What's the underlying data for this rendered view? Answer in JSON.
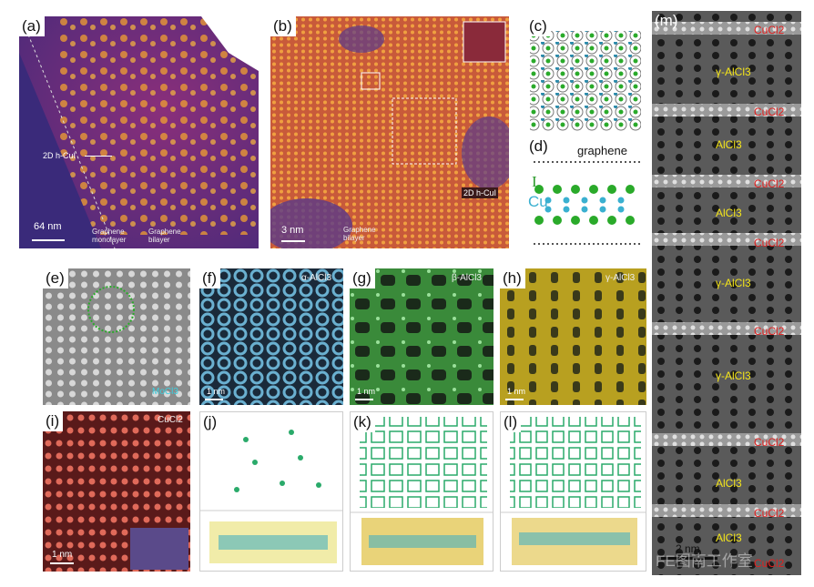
{
  "figure": {
    "panels": [
      {
        "id": "a",
        "label": "(a)",
        "texts": {
          "arrow_label": "2D h-CuI",
          "scale": "64 nm",
          "region1": "Graphene\nmonolayer",
          "region2": "Graphene\nbilayer"
        }
      },
      {
        "id": "b",
        "label": "(b)",
        "texts": {
          "tag": "2D h-CuI",
          "scale": "3 nm",
          "region": "Graphene\nbilayer"
        }
      },
      {
        "id": "c",
        "label": "(c)"
      },
      {
        "id": "d",
        "label": "(d)",
        "texts": {
          "top": "graphene",
          "el1": "I",
          "el2": "Cu"
        }
      },
      {
        "id": "e",
        "label": "(e)",
        "texts": {
          "material": "MoCl3"
        }
      },
      {
        "id": "f",
        "label": "(f)",
        "texts": {
          "material": "α-AlCl3",
          "scale": "1 nm"
        }
      },
      {
        "id": "g",
        "label": "(g)",
        "texts": {
          "material": "β-AlCl3",
          "scale": "1 nm"
        }
      },
      {
        "id": "h",
        "label": "(h)",
        "texts": {
          "material": "γ-AlCl3",
          "scale": "1 nm"
        }
      },
      {
        "id": "i",
        "label": "(i)",
        "texts": {
          "material": "CuCl2",
          "scale": "1 nm"
        }
      },
      {
        "id": "j",
        "label": "(j)"
      },
      {
        "id": "k",
        "label": "(k)"
      },
      {
        "id": "l",
        "label": "(l)"
      },
      {
        "id": "m",
        "label": "(m)",
        "texts": {
          "scale": "2 nm",
          "watermark": "FE图南工作室"
        }
      }
    ],
    "panel_m_layers": [
      {
        "text": "CuCl2",
        "color": "#e0201f"
      },
      {
        "text": "γ-AlCl3",
        "color": "#f5e61a"
      },
      {
        "text": "CuCl2",
        "color": "#e0201f"
      },
      {
        "text": "AlCl3",
        "color": "#f5e61a"
      },
      {
        "text": "CuCl2",
        "color": "#e0201f"
      },
      {
        "text": "AlCl3",
        "color": "#f5e61a"
      },
      {
        "text": "CuCl2",
        "color": "#e0201f"
      },
      {
        "text": "γ-AlCl3",
        "color": "#f5e61a"
      },
      {
        "text": "CuCl2",
        "color": "#e0201f"
      },
      {
        "text": "γ-AlCl3",
        "color": "#f5e61a"
      },
      {
        "text": "CuCl2",
        "color": "#e0201f"
      },
      {
        "text": "AlCl3",
        "color": "#f5e61a"
      },
      {
        "text": "CuCl2",
        "color": "#e0201f"
      },
      {
        "text": "AlCl3",
        "color": "#f5e61a"
      },
      {
        "text": "CuCl2",
        "color": "#e0201f"
      }
    ]
  }
}
